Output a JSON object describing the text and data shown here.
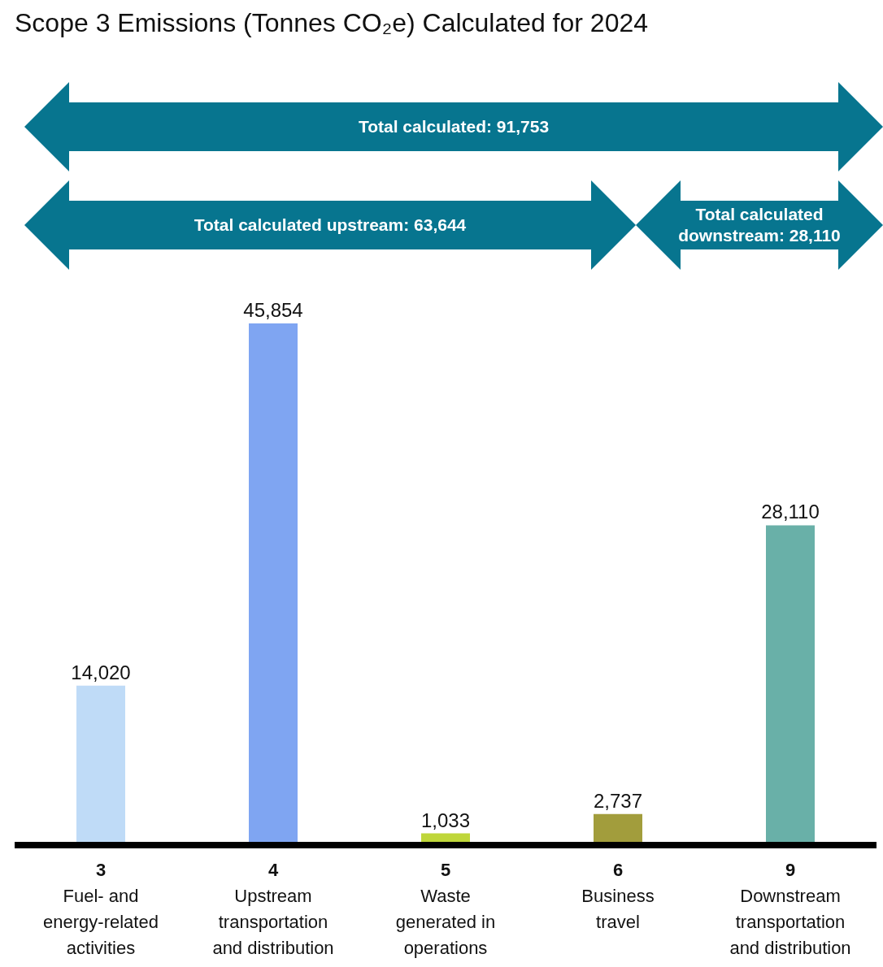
{
  "chart_data": {
    "type": "bar",
    "title": "Scope 3 Emissions (Tonnes CO₂e) Calculated for 2024",
    "categories": [
      "3\nFuel- and\nenergy-related\nactivities",
      "4\nUpstream\ntransportation\nand distribution",
      "5\nWaste\ngenerated in\noperations",
      "6\nBusiness\ntravel",
      "9\nDownstream\ntransportation\nand distribution"
    ],
    "values": [
      14020,
      45854,
      1033,
      2737,
      28110
    ],
    "colors": [
      "#bfdbf7",
      "#7fa5f2",
      "#bfd63a",
      "#a29d3c",
      "#69b0a8"
    ],
    "value_labels": [
      "14,020",
      "45,854",
      "1,033",
      "2,737",
      "28,110"
    ],
    "annotations": [
      "Total calculated: 91,753",
      "Total calculated upstream: 63,644",
      "Total calculated downstream: 28,110"
    ]
  }
}
